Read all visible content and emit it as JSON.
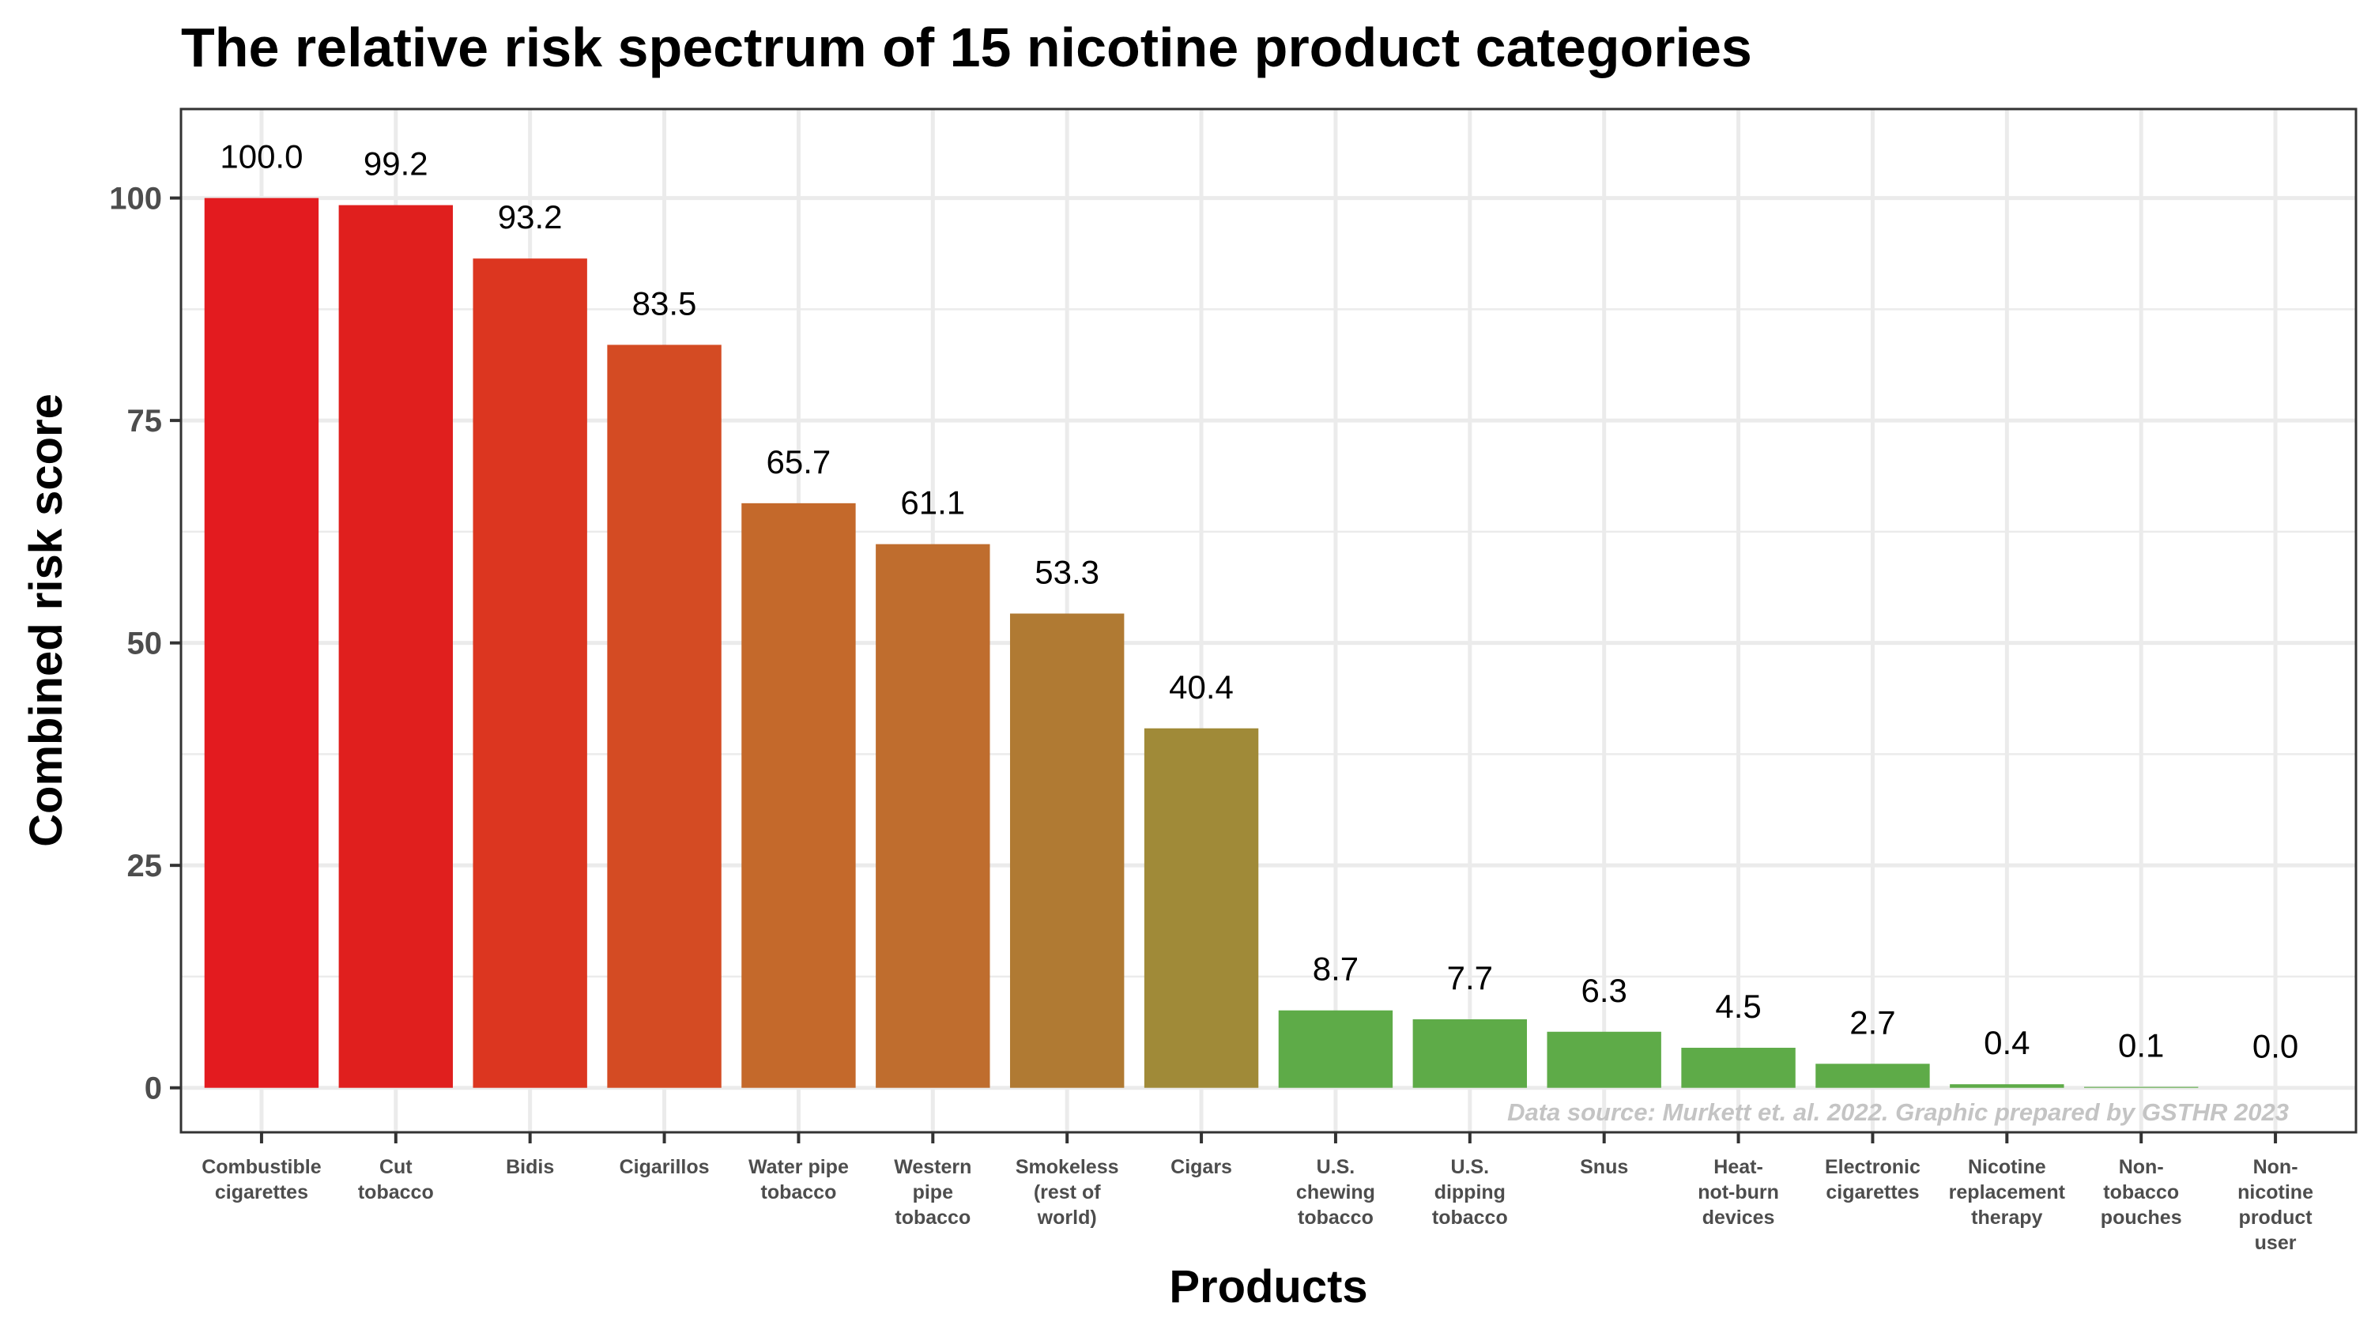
{
  "chart_data": {
    "type": "bar",
    "title": "The relative risk spectrum of 15 nicotine product categories",
    "xlabel": "Products",
    "ylabel": "Combined risk score",
    "caption": "Data source: Murkett et. al. 2022. Graphic prepared by GSTHR 2023",
    "categories": [
      [
        "Combustible",
        "cigarettes"
      ],
      [
        "Cut",
        "tobacco"
      ],
      [
        "Bidis"
      ],
      [
        "Cigarillos"
      ],
      [
        "Water pipe",
        "tobacco"
      ],
      [
        "Western",
        "pipe",
        "tobacco"
      ],
      [
        "Smokeless",
        "(rest of",
        "world)"
      ],
      [
        "Cigars"
      ],
      [
        "U.S.",
        "chewing",
        "tobacco"
      ],
      [
        "U.S.",
        "dipping",
        "tobacco"
      ],
      [
        "Snus"
      ],
      [
        "Heat-",
        "not-burn",
        "devices"
      ],
      [
        "Electronic",
        "cigarettes"
      ],
      [
        "Nicotine",
        "replacement",
        "therapy"
      ],
      [
        "Non-",
        "tobacco",
        "pouches"
      ],
      [
        "Non-",
        "nicotine",
        "product",
        "user"
      ]
    ],
    "values": [
      100.0,
      99.2,
      93.2,
      83.5,
      65.7,
      61.1,
      53.3,
      40.4,
      8.7,
      7.7,
      6.3,
      4.5,
      2.7,
      0.4,
      0.1,
      0.0
    ],
    "value_labels": [
      "100.0",
      "99.2",
      "93.2",
      "83.5",
      "65.7",
      "61.1",
      "53.3",
      "40.4",
      "8.7",
      "7.7",
      "6.3",
      "4.5",
      "2.7",
      "0.4",
      "0.1",
      "0.0"
    ],
    "colors": [
      "#e31b1f",
      "#e01f1e",
      "#dc3620",
      "#d44b23",
      "#c4692b",
      "#bf6d2e",
      "#b07a33",
      "#a08a38",
      "#5eab48",
      "#5eab48",
      "#5eab48",
      "#5eab48",
      "#5eab48",
      "#5eab48",
      "#5eab48",
      "#5eab48"
    ],
    "yticks": [
      0,
      25,
      50,
      75,
      100
    ],
    "ylim": [
      -5,
      110
    ],
    "grid": true,
    "legend": "none"
  }
}
